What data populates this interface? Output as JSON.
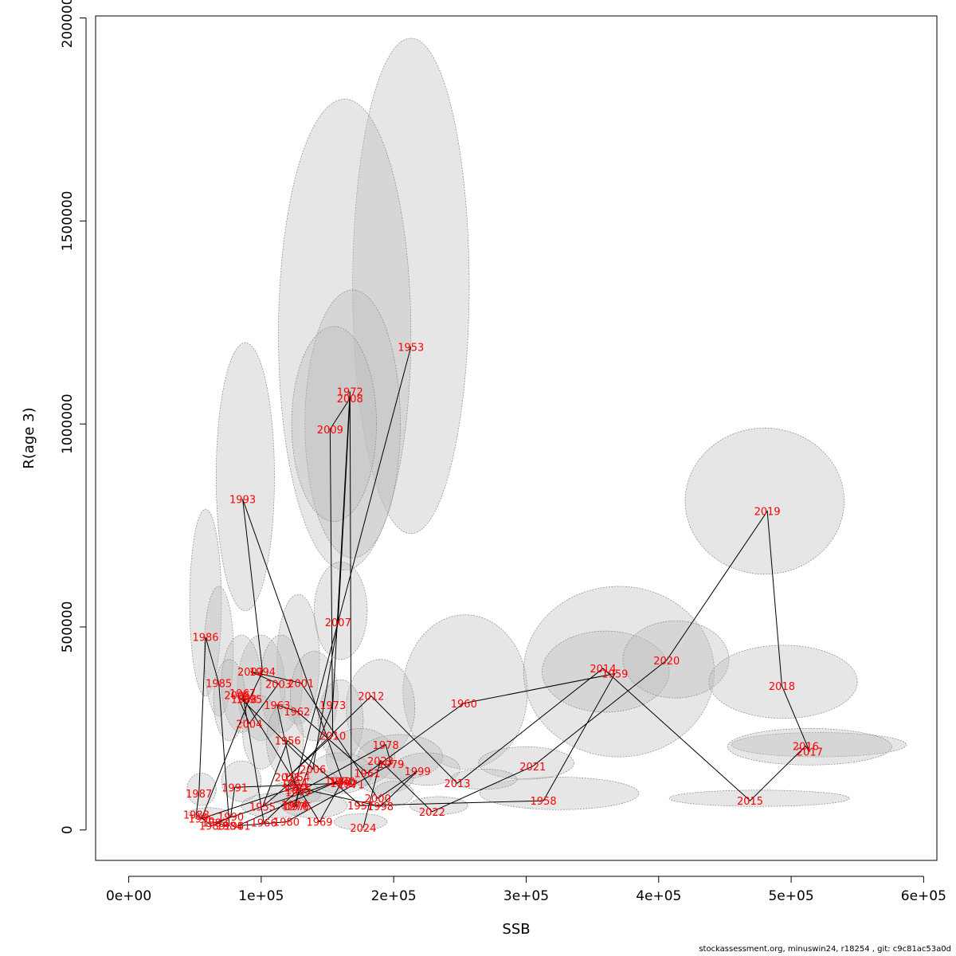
{
  "chart_data": {
    "type": "scatter",
    "title": "",
    "xlabel": "SSB",
    "ylabel": "R(age 3)",
    "xlim": [
      -25000,
      610000
    ],
    "ylim": [
      -75000,
      2005000
    ],
    "x_ticks": [
      0,
      100000,
      200000,
      300000,
      400000,
      500000,
      600000
    ],
    "x_tick_labels": [
      "0e+00",
      "1e+05",
      "2e+05",
      "3e+05",
      "4e+05",
      "5e+05",
      "6e+05"
    ],
    "y_ticks": [
      0,
      500000,
      1000000,
      1500000,
      2000000
    ],
    "y_tick_labels": [
      "0",
      "500000",
      "1000000",
      "1500000",
      "2000000"
    ],
    "grid": false,
    "legend": "none",
    "point_label_color": "#ff0000",
    "line_color": "#000000",
    "ellipse_fill": "#bebebe",
    "ellipses": [
      {
        "cx": 213000,
        "cy": 1340000,
        "rx": 44000,
        "ry": 610000
      },
      {
        "cx": 163000,
        "cy": 1220000,
        "rx": 50000,
        "ry": 580000
      },
      {
        "cx": 169000,
        "cy": 1000000,
        "rx": 36000,
        "ry": 330000
      },
      {
        "cx": 155000,
        "cy": 1000000,
        "rx": 32000,
        "ry": 240000
      },
      {
        "cx": 88000,
        "cy": 870000,
        "rx": 22000,
        "ry": 330000
      },
      {
        "cx": 58000,
        "cy": 560000,
        "rx": 12000,
        "ry": 230000
      },
      {
        "cx": 68000,
        "cy": 440000,
        "rx": 11000,
        "ry": 160000
      },
      {
        "cx": 160000,
        "cy": 540000,
        "rx": 20000,
        "ry": 120000
      },
      {
        "cx": 254000,
        "cy": 340000,
        "rx": 47000,
        "ry": 190000
      },
      {
        "cx": 190000,
        "cy": 300000,
        "rx": 26000,
        "ry": 120000
      },
      {
        "cx": 128000,
        "cy": 420000,
        "rx": 16000,
        "ry": 160000
      },
      {
        "cx": 100000,
        "cy": 350000,
        "rx": 18000,
        "ry": 130000
      },
      {
        "cx": 115000,
        "cy": 360000,
        "rx": 16000,
        "ry": 120000
      },
      {
        "cx": 85000,
        "cy": 360000,
        "rx": 15000,
        "ry": 120000
      },
      {
        "cx": 140000,
        "cy": 330000,
        "rx": 18000,
        "ry": 110000
      },
      {
        "cx": 160000,
        "cy": 270000,
        "rx": 17000,
        "ry": 100000
      },
      {
        "cx": 76000,
        "cy": 320000,
        "rx": 12000,
        "ry": 100000
      },
      {
        "cx": 100000,
        "cy": 240000,
        "rx": 14000,
        "ry": 90000
      },
      {
        "cx": 118000,
        "cy": 220000,
        "rx": 14000,
        "ry": 90000
      },
      {
        "cx": 175000,
        "cy": 180000,
        "rx": 26000,
        "ry": 70000
      },
      {
        "cx": 205000,
        "cy": 180000,
        "rx": 32000,
        "ry": 55000
      },
      {
        "cx": 225000,
        "cy": 150000,
        "rx": 25000,
        "ry": 40000
      },
      {
        "cx": 370000,
        "cy": 390000,
        "rx": 72000,
        "ry": 210000
      },
      {
        "cx": 360000,
        "cy": 390000,
        "rx": 48000,
        "ry": 100000
      },
      {
        "cx": 413000,
        "cy": 420000,
        "rx": 40000,
        "ry": 95000
      },
      {
        "cx": 480000,
        "cy": 810000,
        "rx": 60000,
        "ry": 180000
      },
      {
        "cx": 494000,
        "cy": 365000,
        "rx": 56000,
        "ry": 90000
      },
      {
        "cx": 521000,
        "cy": 210000,
        "rx": 66000,
        "ry": 30000
      },
      {
        "cx": 514000,
        "cy": 205000,
        "rx": 62000,
        "ry": 45000
      },
      {
        "cx": 325000,
        "cy": 90000,
        "rx": 60000,
        "ry": 40000
      },
      {
        "cx": 300000,
        "cy": 165000,
        "rx": 36000,
        "ry": 40000
      },
      {
        "cx": 268000,
        "cy": 125000,
        "rx": 25000,
        "ry": 25000
      },
      {
        "cx": 234000,
        "cy": 60000,
        "rx": 22000,
        "ry": 22000
      },
      {
        "cx": 476000,
        "cy": 78000,
        "rx": 68000,
        "ry": 20000
      },
      {
        "cx": 193000,
        "cy": 130000,
        "rx": 22000,
        "ry": 40000
      },
      {
        "cx": 160000,
        "cy": 140000,
        "rx": 24000,
        "ry": 50000
      },
      {
        "cx": 140000,
        "cy": 110000,
        "rx": 20000,
        "ry": 40000
      },
      {
        "cx": 125000,
        "cy": 90000,
        "rx": 20000,
        "ry": 30000
      },
      {
        "cx": 140000,
        "cy": 60000,
        "rx": 25000,
        "ry": 30000
      },
      {
        "cx": 110000,
        "cy": 60000,
        "rx": 25000,
        "ry": 30000
      },
      {
        "cx": 85000,
        "cy": 120000,
        "rx": 15000,
        "ry": 50000
      },
      {
        "cx": 55000,
        "cy": 100000,
        "rx": 11000,
        "ry": 40000
      },
      {
        "cx": 175000,
        "cy": 20000,
        "rx": 20000,
        "ry": 20000
      },
      {
        "cx": 60000,
        "cy": 40000,
        "rx": 15000,
        "ry": 15000
      },
      {
        "cx": 200000,
        "cy": 90000,
        "rx": 15000,
        "ry": 30000
      }
    ],
    "points": [
      {
        "year": "1953",
        "x": 213000,
        "y": 1190000
      },
      {
        "year": "1954",
        "x": 127000,
        "y": 130000
      },
      {
        "year": "1955",
        "x": 101000,
        "y": 57000
      },
      {
        "year": "1956",
        "x": 120000,
        "y": 220000
      },
      {
        "year": "1957",
        "x": 175000,
        "y": 60000
      },
      {
        "year": "1958",
        "x": 313000,
        "y": 72000
      },
      {
        "year": "1959",
        "x": 367000,
        "y": 385000
      },
      {
        "year": "1960",
        "x": 253000,
        "y": 312000
      },
      {
        "year": "1961",
        "x": 180000,
        "y": 140000
      },
      {
        "year": "1962",
        "x": 127000,
        "y": 292000
      },
      {
        "year": "1963",
        "x": 112000,
        "y": 308000
      },
      {
        "year": "1964",
        "x": 125000,
        "y": 115000
      },
      {
        "year": "1965",
        "x": 128000,
        "y": 99000
      },
      {
        "year": "1966",
        "x": 102000,
        "y": 18000
      },
      {
        "year": "1967",
        "x": 86000,
        "y": 337000
      },
      {
        "year": "1968",
        "x": 87000,
        "y": 322000
      },
      {
        "year": "1969",
        "x": 144000,
        "y": 20000
      },
      {
        "year": "1970",
        "x": 161000,
        "y": 120000
      },
      {
        "year": "1971",
        "x": 168000,
        "y": 112000
      },
      {
        "year": "1972",
        "x": 167000,
        "y": 1080000
      },
      {
        "year": "1973",
        "x": 154000,
        "y": 308000
      },
      {
        "year": "1974",
        "x": 125000,
        "y": 62000
      },
      {
        "year": "1975",
        "x": 128000,
        "y": 58000
      },
      {
        "year": "1976",
        "x": 126000,
        "y": 58000
      },
      {
        "year": "1977",
        "x": 128000,
        "y": 93000
      },
      {
        "year": "1978",
        "x": 194000,
        "y": 210000
      },
      {
        "year": "1979",
        "x": 198000,
        "y": 162000
      },
      {
        "year": "1980",
        "x": 119000,
        "y": 20000
      },
      {
        "year": "1981",
        "x": 82000,
        "y": 10000
      },
      {
        "year": "1982",
        "x": 158000,
        "y": 120000
      },
      {
        "year": "1983",
        "x": 65000,
        "y": 18000
      },
      {
        "year": "1984",
        "x": 76000,
        "y": 10000
      },
      {
        "year": "1985",
        "x": 68000,
        "y": 362000
      },
      {
        "year": "1986",
        "x": 58000,
        "y": 475000
      },
      {
        "year": "1987",
        "x": 53000,
        "y": 90000
      },
      {
        "year": "1988",
        "x": 51000,
        "y": 38000
      },
      {
        "year": "1989",
        "x": 63000,
        "y": 10000
      },
      {
        "year": "1990",
        "x": 77000,
        "y": 33000
      },
      {
        "year": "1991",
        "x": 80000,
        "y": 105000
      },
      {
        "year": "1992",
        "x": 162000,
        "y": 115000
      },
      {
        "year": "1993",
        "x": 86000,
        "y": 815000
      },
      {
        "year": "1994",
        "x": 101000,
        "y": 390000
      },
      {
        "year": "1995",
        "x": 91000,
        "y": 322000
      },
      {
        "year": "1996",
        "x": 55000,
        "y": 28000
      },
      {
        "year": "1997",
        "x": 126000,
        "y": 105000
      },
      {
        "year": "1998",
        "x": 190000,
        "y": 58000
      },
      {
        "year": "1999",
        "x": 218000,
        "y": 145000
      },
      {
        "year": "2000",
        "x": 188000,
        "y": 78000
      },
      {
        "year": "2001",
        "x": 130000,
        "y": 362000
      },
      {
        "year": "2002",
        "x": 92000,
        "y": 390000
      },
      {
        "year": "2003",
        "x": 113000,
        "y": 360000
      },
      {
        "year": "2004",
        "x": 91000,
        "y": 262000
      },
      {
        "year": "2005",
        "x": 82000,
        "y": 332000
      },
      {
        "year": "2006",
        "x": 139000,
        "y": 150000
      },
      {
        "year": "2007",
        "x": 158000,
        "y": 512000
      },
      {
        "year": "2008",
        "x": 167000,
        "y": 1063000
      },
      {
        "year": "2009",
        "x": 152000,
        "y": 987000
      },
      {
        "year": "2010",
        "x": 154000,
        "y": 232000
      },
      {
        "year": "2011",
        "x": 120000,
        "y": 130000
      },
      {
        "year": "2012",
        "x": 183000,
        "y": 330000
      },
      {
        "year": "2013",
        "x": 248000,
        "y": 115000
      },
      {
        "year": "2014",
        "x": 358000,
        "y": 398000
      },
      {
        "year": "2015",
        "x": 469000,
        "y": 72000
      },
      {
        "year": "2016",
        "x": 511000,
        "y": 207000
      },
      {
        "year": "2017",
        "x": 514000,
        "y": 193000
      },
      {
        "year": "2018",
        "x": 493000,
        "y": 355000
      },
      {
        "year": "2019",
        "x": 482000,
        "y": 785000
      },
      {
        "year": "2020",
        "x": 406000,
        "y": 418000
      },
      {
        "year": "2021",
        "x": 305000,
        "y": 157000
      },
      {
        "year": "2022",
        "x": 229000,
        "y": 45000
      },
      {
        "year": "2023",
        "x": 190000,
        "y": 170000
      },
      {
        "year": "2024",
        "x": 177000,
        "y": 5000
      }
    ]
  },
  "footer": {
    "text": "stockassessment.org, minuswin24, r18254 , git: c9c81ac53a0d"
  }
}
